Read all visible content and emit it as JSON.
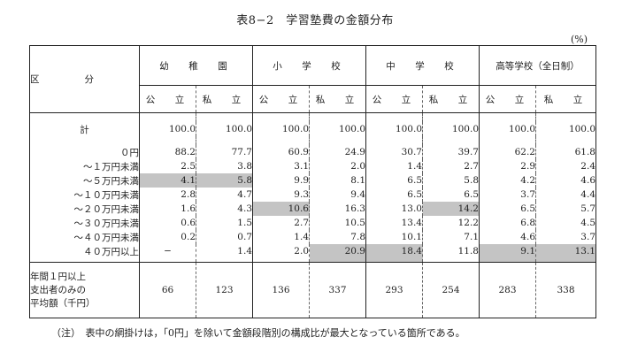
{
  "title": "表8−2　学習塾費の金額分布",
  "unit": "(%)",
  "header": {
    "row_label": "区　　分",
    "groups": [
      "幼　稚　園",
      "小　学　校",
      "中　学　校",
      "高等学校（全日制）"
    ],
    "public": "公　立",
    "private": "私　立"
  },
  "rows": [
    {
      "label": "計",
      "values": [
        "100.0",
        "100.0",
        "100.0",
        "100.0",
        "100.0",
        "100.0",
        "100.0",
        "100.0"
      ]
    },
    {
      "label": "０円",
      "values": [
        "88.2",
        "77.7",
        "60.9",
        "24.9",
        "30.7",
        "39.7",
        "62.2",
        "61.8"
      ]
    },
    {
      "label": "～１万円未満",
      "values": [
        "2.5",
        "3.8",
        "3.1",
        "2.0",
        "1.4",
        "2.7",
        "2.9",
        "2.4"
      ]
    },
    {
      "label": "～５万円未満",
      "values": [
        "4.1",
        "5.8",
        "9.9",
        "8.1",
        "6.5",
        "5.8",
        "4.2",
        "4.6"
      ]
    },
    {
      "label": "～１０万円未満",
      "values": [
        "2.8",
        "4.7",
        "9.3",
        "9.4",
        "6.5",
        "6.5",
        "3.7",
        "4.4"
      ]
    },
    {
      "label": "～２０万円未満",
      "values": [
        "1.6",
        "4.3",
        "10.6",
        "16.3",
        "13.0",
        "14.2",
        "6.5",
        "5.7"
      ]
    },
    {
      "label": "～３０万円未満",
      "values": [
        "0.6",
        "1.5",
        "2.7",
        "10.5",
        "13.4",
        "12.2",
        "6.8",
        "4.5"
      ]
    },
    {
      "label": "～４０万円未満",
      "values": [
        "0.2",
        "0.7",
        "1.4",
        "7.8",
        "10.1",
        "7.1",
        "4.6",
        "3.7"
      ]
    },
    {
      "label": "４０万円以上",
      "values": [
        "−",
        "1.4",
        "2.0",
        "20.9",
        "18.4",
        "11.8",
        "9.1",
        "13.1"
      ]
    }
  ],
  "average": {
    "label_lines": [
      "年間１円以上",
      "支出者のみの",
      "平均額（千円）"
    ],
    "values": [
      "66",
      "123",
      "136",
      "337",
      "293",
      "254",
      "283",
      "338"
    ]
  },
  "note": "（注）　表中の網掛けは，「0円」を除いて金額段階別の構成比が最大となっている箇所である。",
  "colors": {
    "highlight": "#c4c4c4",
    "rule": "#222222"
  }
}
